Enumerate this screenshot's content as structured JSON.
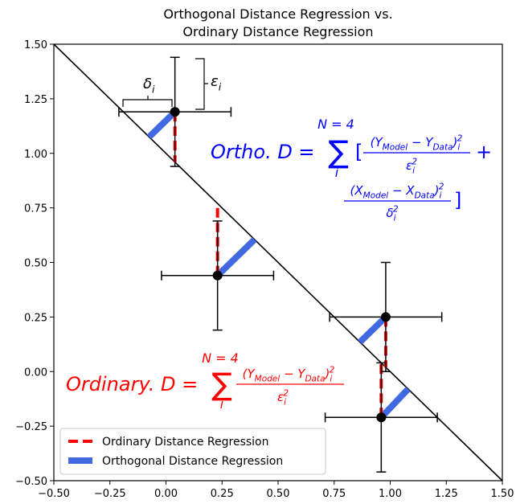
{
  "chart_data": {
    "type": "errorbar",
    "title": [
      "Orthogonal Distance Regression vs.",
      "Ordinary Distance Regression"
    ],
    "xlim": [
      -0.5,
      1.5
    ],
    "ylim": [
      -0.5,
      1.5
    ],
    "xticks": [
      {
        "value": -0.5,
        "label": "−0.50"
      },
      {
        "value": -0.25,
        "label": "−0.25"
      },
      {
        "value": 0,
        "label": "0.00"
      },
      0.25,
      {
        "value": 0.5,
        "label": "0.50"
      },
      0.75,
      {
        "value": 1,
        "label": "1.00"
      },
      1.25,
      {
        "value": 1.5,
        "label": "1.50"
      }
    ],
    "yticks": [
      {
        "value": -0.5,
        "label": "−0.50"
      },
      {
        "value": -0.25,
        "label": "−0.25"
      },
      {
        "value": 0,
        "label": "0.00"
      },
      0.25,
      {
        "value": 0.5,
        "label": "0.50"
      },
      0.75,
      {
        "value": 1,
        "label": "1.00"
      },
      1.25,
      {
        "value": 1.5,
        "label": "1.50"
      }
    ],
    "points": {
      "x": [
        0.04,
        0.23,
        0.98,
        0.96
      ],
      "y": [
        1.19,
        0.44,
        0.25,
        -0.21
      ],
      "xerr": [
        0.25,
        0.25,
        0.25,
        0.25
      ],
      "yerr": [
        0.25,
        0.25,
        0.25,
        0.25
      ]
    },
    "model_line": {
      "x": [
        -0.5,
        1.5
      ],
      "y": [
        1.5,
        -0.5
      ]
    },
    "series": [
      {
        "name": "Ordinary Distance Regression",
        "color": "#ff0000",
        "style": "dashed",
        "x": [
          0.04,
          0.04,
          null,
          0.23,
          0.23,
          null,
          0.98,
          0.98,
          null,
          0.96,
          0.96
        ],
        "y": [
          1.19,
          0.96,
          null,
          0.44,
          0.77,
          null,
          0.25,
          0.02,
          null,
          -0.21,
          0.05
        ]
      },
      {
        "name": "Orthogonal Distance Regression",
        "color": "#4169e1",
        "style": "solid",
        "x": [
          0.04,
          -0.075,
          null,
          0.23,
          0.395,
          null,
          0.98,
          0.865,
          null,
          0.96,
          1.08
        ],
        "y": [
          1.19,
          1.075,
          null,
          0.44,
          0.605,
          null,
          0.25,
          0.135,
          null,
          -0.21,
          -0.08
        ]
      }
    ],
    "legend": "lower left",
    "delta_label": [
      {
        "text": "δ"
      },
      {
        "text": "i",
        "script": "sub"
      }
    ],
    "epsilon_label": [
      {
        "text": "ε"
      },
      {
        "text": "i",
        "script": "sub"
      }
    ],
    "ortho_formula": {
      "color": "#0000ff",
      "lhs": "Ortho. D =",
      "sum": "∑",
      "upper": "N = 4",
      "lower": "i",
      "open": "[",
      "num1": [
        {
          "text": "(Y"
        },
        {
          "text": "Model",
          "script": "sub"
        },
        {
          "text": " − Y"
        },
        {
          "text": "Data",
          "script": "sub"
        },
        {
          "text": ")"
        },
        {
          "text": "i",
          "script": "sub"
        },
        {
          "text": "2",
          "script": "sup"
        }
      ],
      "den1": [
        {
          "text": "ε"
        },
        {
          "text": "i",
          "script": "sub"
        },
        {
          "text": "2",
          "script": "sup"
        }
      ],
      "plus": "+",
      "num2": [
        {
          "text": "(X"
        },
        {
          "text": "Model",
          "script": "sub"
        },
        {
          "text": " − X"
        },
        {
          "text": "Data",
          "script": "sub"
        },
        {
          "text": ")"
        },
        {
          "text": "i",
          "script": "sub"
        },
        {
          "text": "2",
          "script": "sup"
        }
      ],
      "den2": [
        {
          "text": "δ"
        },
        {
          "text": "i",
          "script": "sub"
        },
        {
          "text": "2",
          "script": "sup"
        }
      ],
      "close": "]"
    },
    "ordinary_formula": {
      "color": "#ff0000",
      "lhs": "Ordinary. D =",
      "sum": "∑",
      "upper": "N = 4",
      "lower": "i",
      "num": [
        {
          "text": "(Y"
        },
        {
          "text": "Model",
          "script": "sub"
        },
        {
          "text": " − Y"
        },
        {
          "text": "Data",
          "script": "sub"
        },
        {
          "text": ")"
        },
        {
          "text": "i",
          "script": "sub"
        },
        {
          "text": "2",
          "script": "sup"
        }
      ],
      "den": [
        {
          "text": "ε"
        },
        {
          "text": "i",
          "script": "sub"
        },
        {
          "text": "2",
          "script": "sup"
        }
      ]
    }
  }
}
